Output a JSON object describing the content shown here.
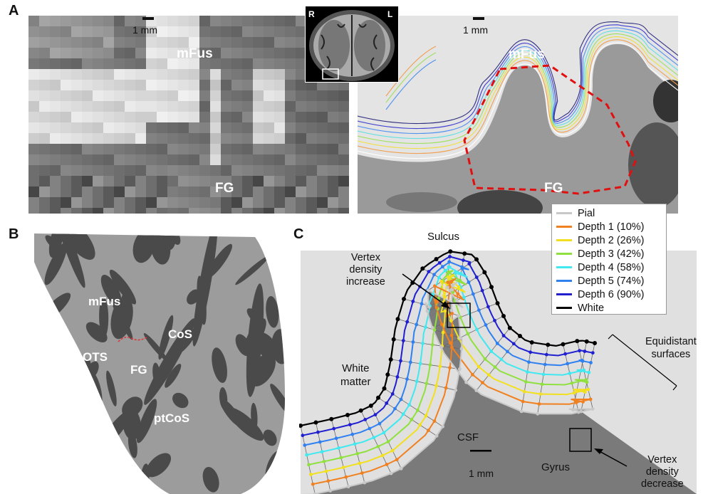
{
  "panel_labels": {
    "a": "A",
    "b": "B",
    "c": "C"
  },
  "panel_a": {
    "scale_left": "1 mm",
    "scale_right": "1 mm",
    "label_mfus_left": "mFus",
    "label_fg_left": "FG",
    "label_mfus_right": "mFus",
    "label_fg_right": "FG",
    "inset_r": "R",
    "inset_l": "L"
  },
  "panel_b": {
    "mfus": "mFus",
    "cos": "CoS",
    "ots": "OTS",
    "fg": "FG",
    "ptcos": "ptCoS"
  },
  "panel_c": {
    "sulcus": "Sulcus",
    "vertex_increase": [
      "Vertex",
      "density",
      "increase"
    ],
    "white_matter": [
      "White",
      "matter"
    ],
    "csf": "CSF",
    "gyrus": "Gyrus",
    "scale": "1 mm",
    "equidistant": [
      "Equidistant",
      "surfaces"
    ],
    "vertex_decrease": [
      "Vertex",
      "density",
      "decrease"
    ],
    "legend": [
      {
        "label": "Pial",
        "color": "#c8c8c8"
      },
      {
        "label": "Depth 1 (10%)",
        "color": "#f08020"
      },
      {
        "label": "Depth 2 (26%)",
        "color": "#f2e020"
      },
      {
        "label": "Depth 3 (42%)",
        "color": "#90e040"
      },
      {
        "label": "Depth 4 (58%)",
        "color": "#40e8f0"
      },
      {
        "label": "Depth 5 (74%)",
        "color": "#3080f0"
      },
      {
        "label": "Depth 6 (90%)",
        "color": "#2020d0"
      },
      {
        "label": "White",
        "color": "#000000"
      }
    ]
  }
}
